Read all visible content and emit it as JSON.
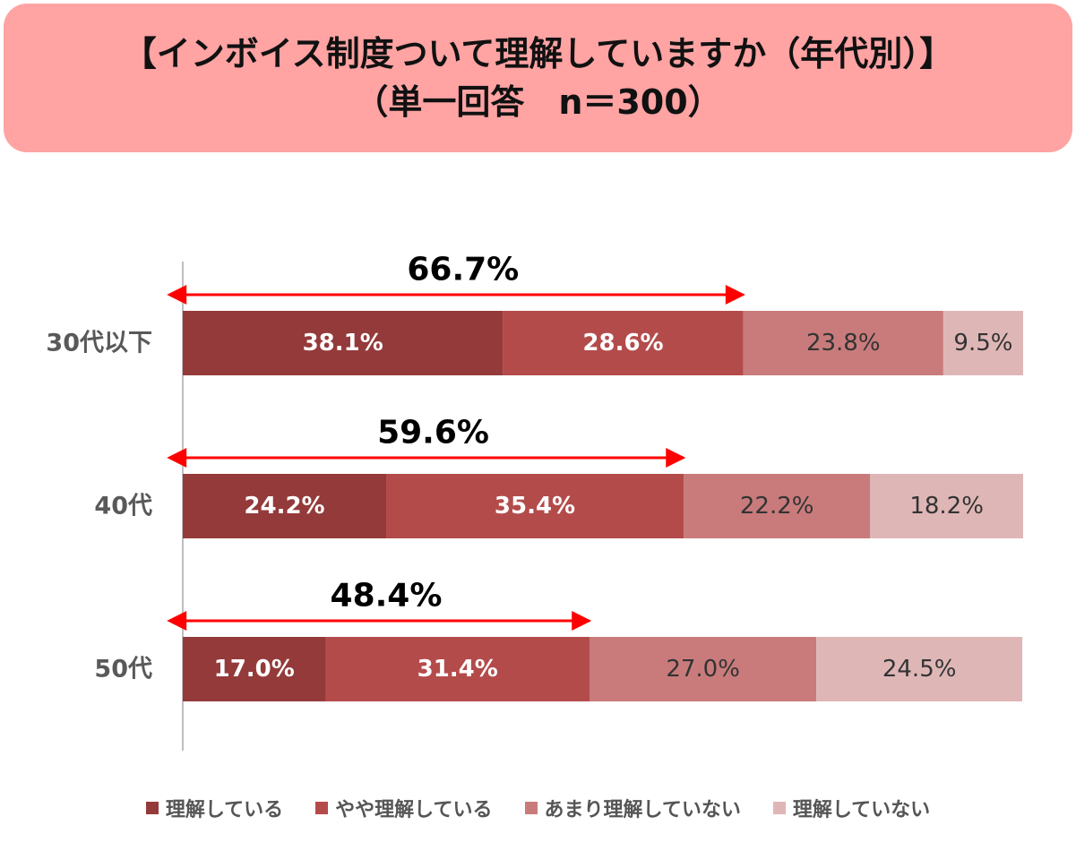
{
  "title": {
    "line1": "【インボイス制度ついて理解していますか（年代別）】",
    "line2": "（単一回答　n＝300）"
  },
  "chart_data": {
    "type": "bar",
    "orientation": "horizontal",
    "stacked": true,
    "categories": [
      "30代以下",
      "40代",
      "50代"
    ],
    "series": [
      {
        "name": "理解している",
        "values": [
          38.1,
          24.2,
          17.0
        ],
        "color": "#943a3a"
      },
      {
        "name": "やや理解している",
        "values": [
          28.6,
          35.4,
          31.4
        ],
        "color": "#b44b4b"
      },
      {
        "name": "あまり理解していない",
        "values": [
          23.8,
          22.2,
          27.0
        ],
        "color": "#c97b7b"
      },
      {
        "name": "理解していない",
        "values": [
          9.5,
          18.2,
          24.5
        ],
        "color": "#dfb6b6"
      }
    ],
    "data_labels": [
      [
        "38.1%",
        "28.6%",
        "23.8%",
        "9.5%"
      ],
      [
        "24.2%",
        "35.4%",
        "22.2%",
        "18.2%"
      ],
      [
        "17.0%",
        "31.4%",
        "27.0%",
        "24.5%"
      ]
    ],
    "annotations": [
      {
        "category": "30代以下",
        "value": 66.7,
        "label": "66.7%"
      },
      {
        "category": "40代",
        "value": 59.6,
        "label": "59.6%"
      },
      {
        "category": "50代",
        "value": 48.4,
        "label": "48.4%"
      }
    ],
    "xlim": [
      0,
      100
    ],
    "legend_position": "bottom",
    "arrow_color": "#ff0000",
    "label_colors": [
      "#ffffff",
      "#ffffff",
      "#333333",
      "#333333"
    ]
  }
}
